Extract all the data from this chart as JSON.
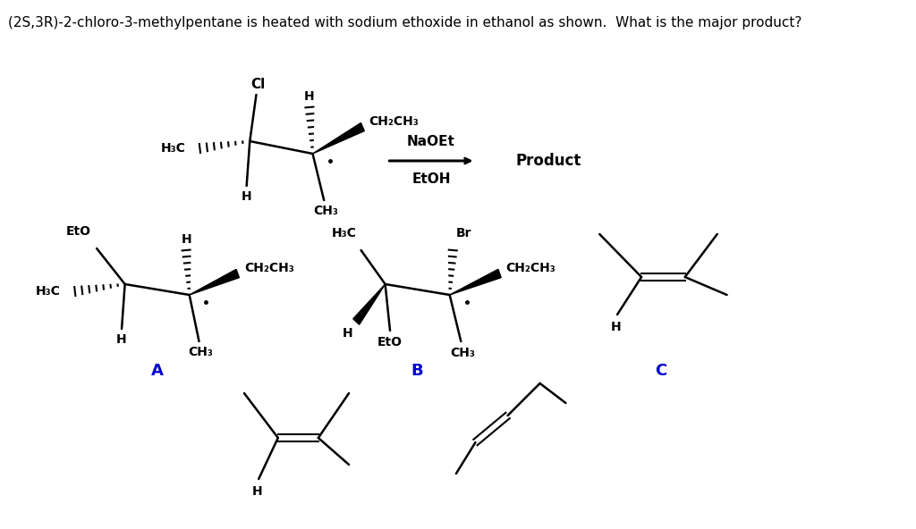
{
  "title_text": "(2S,3R)-2-chloro-3-methylpentane is heated with sodium ethoxide in ethanol as shown.  What is the major product?",
  "title_fontsize": 11,
  "background_color": "#ffffff",
  "text_color": "#000000",
  "label_color": "#0000cc",
  "label_fontsize": 13,
  "label_fontweight": "bold",
  "arrow_label1": "NaOEt",
  "arrow_label2": "EtOH",
  "product_label": "Product"
}
